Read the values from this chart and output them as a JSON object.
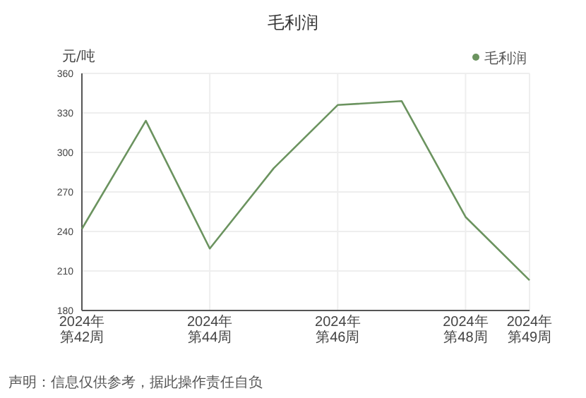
{
  "chart_data": {
    "type": "line",
    "title": "毛利润",
    "ylabel": "元/吨",
    "categories": [
      "2024年第42周",
      null,
      "2024年第44周",
      null,
      "2024年第46周",
      null,
      "2024年第48周",
      "2024年第49周"
    ],
    "series": [
      {
        "name": "毛利润",
        "color": "#6b935f",
        "values": [
          242,
          324,
          227,
          288,
          336,
          339,
          251,
          203
        ]
      }
    ],
    "ylim": [
      180,
      360
    ],
    "yticks": [
      180,
      210,
      240,
      270,
      300,
      330,
      360
    ],
    "grid": true,
    "legend": "top right",
    "marker": "none",
    "annotations": [
      "声明：信息仅供参考，据此操作责任自负"
    ]
  }
}
